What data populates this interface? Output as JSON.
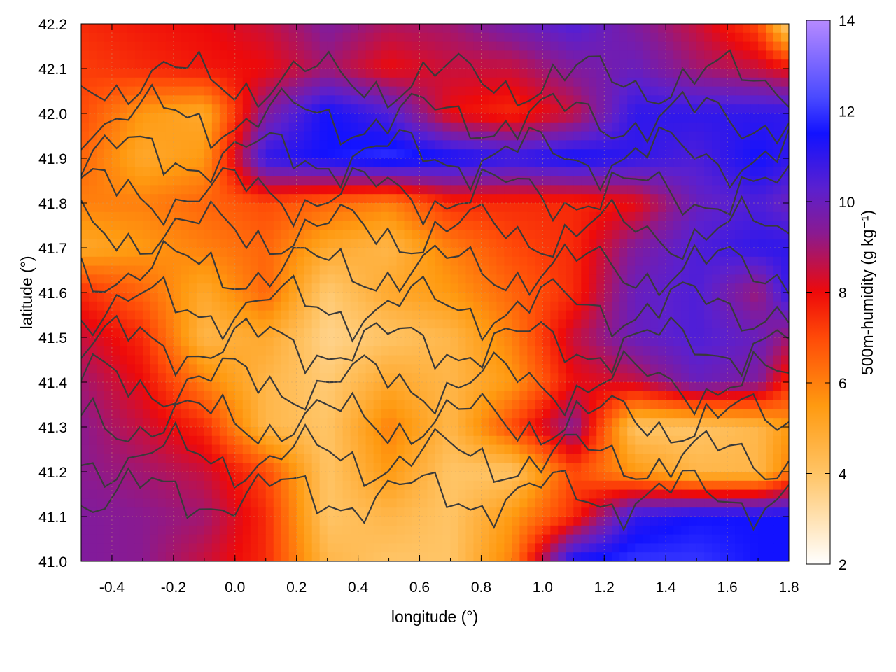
{
  "chart_data": {
    "type": "heatmap",
    "title": "",
    "xlabel": "longitude (°)",
    "ylabel": "latitude (°)",
    "colorbar_label": "500m-humidity (g kg⁻¹)",
    "xlim": [
      -0.5,
      1.8
    ],
    "ylim": [
      41.0,
      42.2
    ],
    "clim": [
      2,
      14
    ],
    "x_ticks": [
      "-0.4",
      "-0.2",
      "0.0",
      "0.2",
      "0.4",
      "0.6",
      "0.8",
      "1.0",
      "1.2",
      "1.4",
      "1.6",
      "1.8"
    ],
    "x_tick_values": [
      -0.4,
      -0.2,
      0.0,
      0.2,
      0.4,
      0.6,
      0.8,
      1.0,
      1.2,
      1.4,
      1.6,
      1.8
    ],
    "y_ticks": [
      "41.0",
      "41.1",
      "41.2",
      "41.3",
      "41.4",
      "41.5",
      "41.6",
      "41.7",
      "41.8",
      "41.9",
      "42.0",
      "42.1",
      "42.2"
    ],
    "y_tick_values": [
      41.0,
      41.1,
      41.2,
      41.3,
      41.4,
      41.5,
      41.6,
      41.7,
      41.8,
      41.9,
      42.0,
      42.1,
      42.2
    ],
    "colorbar_ticks": [
      "2",
      "4",
      "6",
      "8",
      "10",
      "12",
      "14"
    ],
    "colorbar_tick_values": [
      2,
      4,
      6,
      8,
      10,
      12,
      14
    ],
    "grid": true,
    "colormap": [
      {
        "v": 2,
        "color": "#ffffff"
      },
      {
        "v": 4,
        "color": "#ffc466"
      },
      {
        "v": 5.5,
        "color": "#ff9a10"
      },
      {
        "v": 7,
        "color": "#ff4a08"
      },
      {
        "v": 8,
        "color": "#ee0a0a"
      },
      {
        "v": 9.3,
        "color": "#8a1a90"
      },
      {
        "v": 10.3,
        "color": "#5a20d0"
      },
      {
        "v": 11.5,
        "color": "#1212ff"
      },
      {
        "v": 12.3,
        "color": "#4a4aff"
      },
      {
        "v": 14,
        "color": "#b68aff"
      }
    ],
    "humidity_grid": {
      "x": [
        -0.5,
        -0.3,
        -0.1,
        0.1,
        0.3,
        0.5,
        0.7,
        0.9,
        1.1,
        1.3,
        1.5,
        1.7,
        1.8
      ],
      "y": [
        42.2,
        42.1,
        42.0,
        41.9,
        41.8,
        41.7,
        41.6,
        41.5,
        41.4,
        41.3,
        41.2,
        41.1,
        41.0
      ],
      "values": [
        [
          7.5,
          7.8,
          8.0,
          8.5,
          9.5,
          8.8,
          9.0,
          9.8,
          10.5,
          9.5,
          8.5,
          7.0,
          3.5
        ],
        [
          7.2,
          7.5,
          7.8,
          8.0,
          9.0,
          8.0,
          8.5,
          8.5,
          9.5,
          10.0,
          9.0,
          8.5,
          8.0
        ],
        [
          7.0,
          5.5,
          5.0,
          9.5,
          11.5,
          10.5,
          8.0,
          7.5,
          8.5,
          11.0,
          11.0,
          11.0,
          11.0
        ],
        [
          6.5,
          5.0,
          5.5,
          11.0,
          11.5,
          12.0,
          11.5,
          11.0,
          11.5,
          11.0,
          10.5,
          11.5,
          11.0
        ],
        [
          6.0,
          6.0,
          6.5,
          7.0,
          6.5,
          6.0,
          7.5,
          7.5,
          7.5,
          8.0,
          10.0,
          10.5,
          10.0
        ],
        [
          5.0,
          5.5,
          6.0,
          6.5,
          5.0,
          4.5,
          6.0,
          7.0,
          7.5,
          9.5,
          10.5,
          11.0,
          11.0
        ],
        [
          7.5,
          6.5,
          5.0,
          6.5,
          3.8,
          5.0,
          5.5,
          6.5,
          7.5,
          10.0,
          10.5,
          9.0,
          11.0
        ],
        [
          8.5,
          7.5,
          4.5,
          5.0,
          3.5,
          4.0,
          4.5,
          6.0,
          8.5,
          10.0,
          10.5,
          10.0,
          9.0
        ],
        [
          9.0,
          8.0,
          6.0,
          4.5,
          3.8,
          5.0,
          4.5,
          5.5,
          8.0,
          8.5,
          10.0,
          9.5,
          7.5
        ],
        [
          9.3,
          8.5,
          7.5,
          4.5,
          4.0,
          6.0,
          4.5,
          7.0,
          9.5,
          4.0,
          4.0,
          4.5,
          5.5
        ],
        [
          9.3,
          9.0,
          8.5,
          7.0,
          4.0,
          5.5,
          4.0,
          4.0,
          7.0,
          5.5,
          4.5,
          4.5,
          6.0
        ],
        [
          9.5,
          9.3,
          9.0,
          7.5,
          4.0,
          4.5,
          4.0,
          5.5,
          7.5,
          11.0,
          11.5,
          11.5,
          11.5
        ],
        [
          9.5,
          9.3,
          8.5,
          7.5,
          4.5,
          4.0,
          4.0,
          6.0,
          11.5,
          12.0,
          12.0,
          11.5,
          11.5
        ]
      ]
    },
    "contour_level_count_hint": 4
  }
}
